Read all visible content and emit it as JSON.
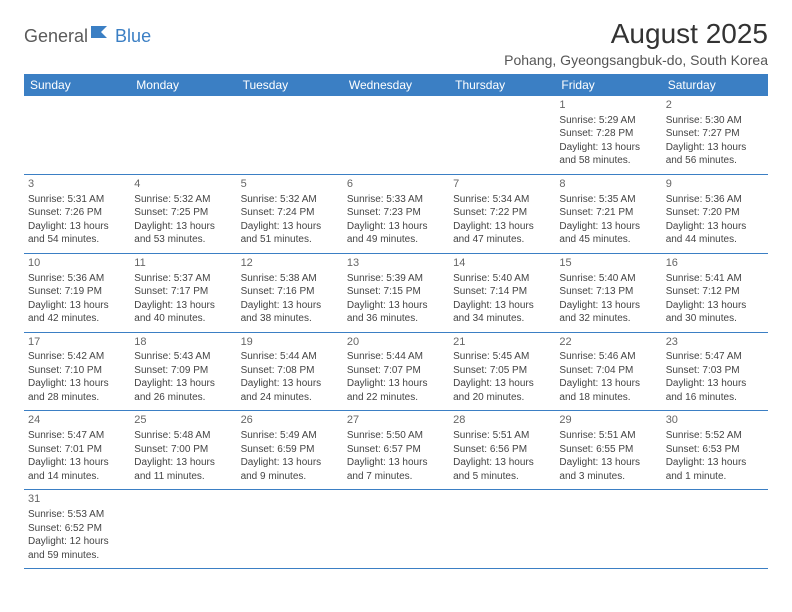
{
  "logo": {
    "part1": "General",
    "part2": "Blue"
  },
  "title": "August 2025",
  "location": "Pohang, Gyeongsangbuk-do, South Korea",
  "colors": {
    "header_bg": "#3b7fc4",
    "header_text": "#ffffff",
    "border": "#3b7fc4",
    "body_text": "#444444",
    "title_text": "#333333",
    "logo_gray": "#5a5a5a",
    "logo_blue": "#3b7fc4",
    "background": "#ffffff"
  },
  "day_names": [
    "Sunday",
    "Monday",
    "Tuesday",
    "Wednesday",
    "Thursday",
    "Friday",
    "Saturday"
  ],
  "weeks": [
    [
      null,
      null,
      null,
      null,
      null,
      {
        "n": "1",
        "sr": "Sunrise: 5:29 AM",
        "ss": "Sunset: 7:28 PM",
        "dl": "Daylight: 13 hours and 58 minutes."
      },
      {
        "n": "2",
        "sr": "Sunrise: 5:30 AM",
        "ss": "Sunset: 7:27 PM",
        "dl": "Daylight: 13 hours and 56 minutes."
      }
    ],
    [
      {
        "n": "3",
        "sr": "Sunrise: 5:31 AM",
        "ss": "Sunset: 7:26 PM",
        "dl": "Daylight: 13 hours and 54 minutes."
      },
      {
        "n": "4",
        "sr": "Sunrise: 5:32 AM",
        "ss": "Sunset: 7:25 PM",
        "dl": "Daylight: 13 hours and 53 minutes."
      },
      {
        "n": "5",
        "sr": "Sunrise: 5:32 AM",
        "ss": "Sunset: 7:24 PM",
        "dl": "Daylight: 13 hours and 51 minutes."
      },
      {
        "n": "6",
        "sr": "Sunrise: 5:33 AM",
        "ss": "Sunset: 7:23 PM",
        "dl": "Daylight: 13 hours and 49 minutes."
      },
      {
        "n": "7",
        "sr": "Sunrise: 5:34 AM",
        "ss": "Sunset: 7:22 PM",
        "dl": "Daylight: 13 hours and 47 minutes."
      },
      {
        "n": "8",
        "sr": "Sunrise: 5:35 AM",
        "ss": "Sunset: 7:21 PM",
        "dl": "Daylight: 13 hours and 45 minutes."
      },
      {
        "n": "9",
        "sr": "Sunrise: 5:36 AM",
        "ss": "Sunset: 7:20 PM",
        "dl": "Daylight: 13 hours and 44 minutes."
      }
    ],
    [
      {
        "n": "10",
        "sr": "Sunrise: 5:36 AM",
        "ss": "Sunset: 7:19 PM",
        "dl": "Daylight: 13 hours and 42 minutes."
      },
      {
        "n": "11",
        "sr": "Sunrise: 5:37 AM",
        "ss": "Sunset: 7:17 PM",
        "dl": "Daylight: 13 hours and 40 minutes."
      },
      {
        "n": "12",
        "sr": "Sunrise: 5:38 AM",
        "ss": "Sunset: 7:16 PM",
        "dl": "Daylight: 13 hours and 38 minutes."
      },
      {
        "n": "13",
        "sr": "Sunrise: 5:39 AM",
        "ss": "Sunset: 7:15 PM",
        "dl": "Daylight: 13 hours and 36 minutes."
      },
      {
        "n": "14",
        "sr": "Sunrise: 5:40 AM",
        "ss": "Sunset: 7:14 PM",
        "dl": "Daylight: 13 hours and 34 minutes."
      },
      {
        "n": "15",
        "sr": "Sunrise: 5:40 AM",
        "ss": "Sunset: 7:13 PM",
        "dl": "Daylight: 13 hours and 32 minutes."
      },
      {
        "n": "16",
        "sr": "Sunrise: 5:41 AM",
        "ss": "Sunset: 7:12 PM",
        "dl": "Daylight: 13 hours and 30 minutes."
      }
    ],
    [
      {
        "n": "17",
        "sr": "Sunrise: 5:42 AM",
        "ss": "Sunset: 7:10 PM",
        "dl": "Daylight: 13 hours and 28 minutes."
      },
      {
        "n": "18",
        "sr": "Sunrise: 5:43 AM",
        "ss": "Sunset: 7:09 PM",
        "dl": "Daylight: 13 hours and 26 minutes."
      },
      {
        "n": "19",
        "sr": "Sunrise: 5:44 AM",
        "ss": "Sunset: 7:08 PM",
        "dl": "Daylight: 13 hours and 24 minutes."
      },
      {
        "n": "20",
        "sr": "Sunrise: 5:44 AM",
        "ss": "Sunset: 7:07 PM",
        "dl": "Daylight: 13 hours and 22 minutes."
      },
      {
        "n": "21",
        "sr": "Sunrise: 5:45 AM",
        "ss": "Sunset: 7:05 PM",
        "dl": "Daylight: 13 hours and 20 minutes."
      },
      {
        "n": "22",
        "sr": "Sunrise: 5:46 AM",
        "ss": "Sunset: 7:04 PM",
        "dl": "Daylight: 13 hours and 18 minutes."
      },
      {
        "n": "23",
        "sr": "Sunrise: 5:47 AM",
        "ss": "Sunset: 7:03 PM",
        "dl": "Daylight: 13 hours and 16 minutes."
      }
    ],
    [
      {
        "n": "24",
        "sr": "Sunrise: 5:47 AM",
        "ss": "Sunset: 7:01 PM",
        "dl": "Daylight: 13 hours and 14 minutes."
      },
      {
        "n": "25",
        "sr": "Sunrise: 5:48 AM",
        "ss": "Sunset: 7:00 PM",
        "dl": "Daylight: 13 hours and 11 minutes."
      },
      {
        "n": "26",
        "sr": "Sunrise: 5:49 AM",
        "ss": "Sunset: 6:59 PM",
        "dl": "Daylight: 13 hours and 9 minutes."
      },
      {
        "n": "27",
        "sr": "Sunrise: 5:50 AM",
        "ss": "Sunset: 6:57 PM",
        "dl": "Daylight: 13 hours and 7 minutes."
      },
      {
        "n": "28",
        "sr": "Sunrise: 5:51 AM",
        "ss": "Sunset: 6:56 PM",
        "dl": "Daylight: 13 hours and 5 minutes."
      },
      {
        "n": "29",
        "sr": "Sunrise: 5:51 AM",
        "ss": "Sunset: 6:55 PM",
        "dl": "Daylight: 13 hours and 3 minutes."
      },
      {
        "n": "30",
        "sr": "Sunrise: 5:52 AM",
        "ss": "Sunset: 6:53 PM",
        "dl": "Daylight: 13 hours and 1 minute."
      }
    ],
    [
      {
        "n": "31",
        "sr": "Sunrise: 5:53 AM",
        "ss": "Sunset: 6:52 PM",
        "dl": "Daylight: 12 hours and 59 minutes."
      },
      null,
      null,
      null,
      null,
      null,
      null
    ]
  ]
}
